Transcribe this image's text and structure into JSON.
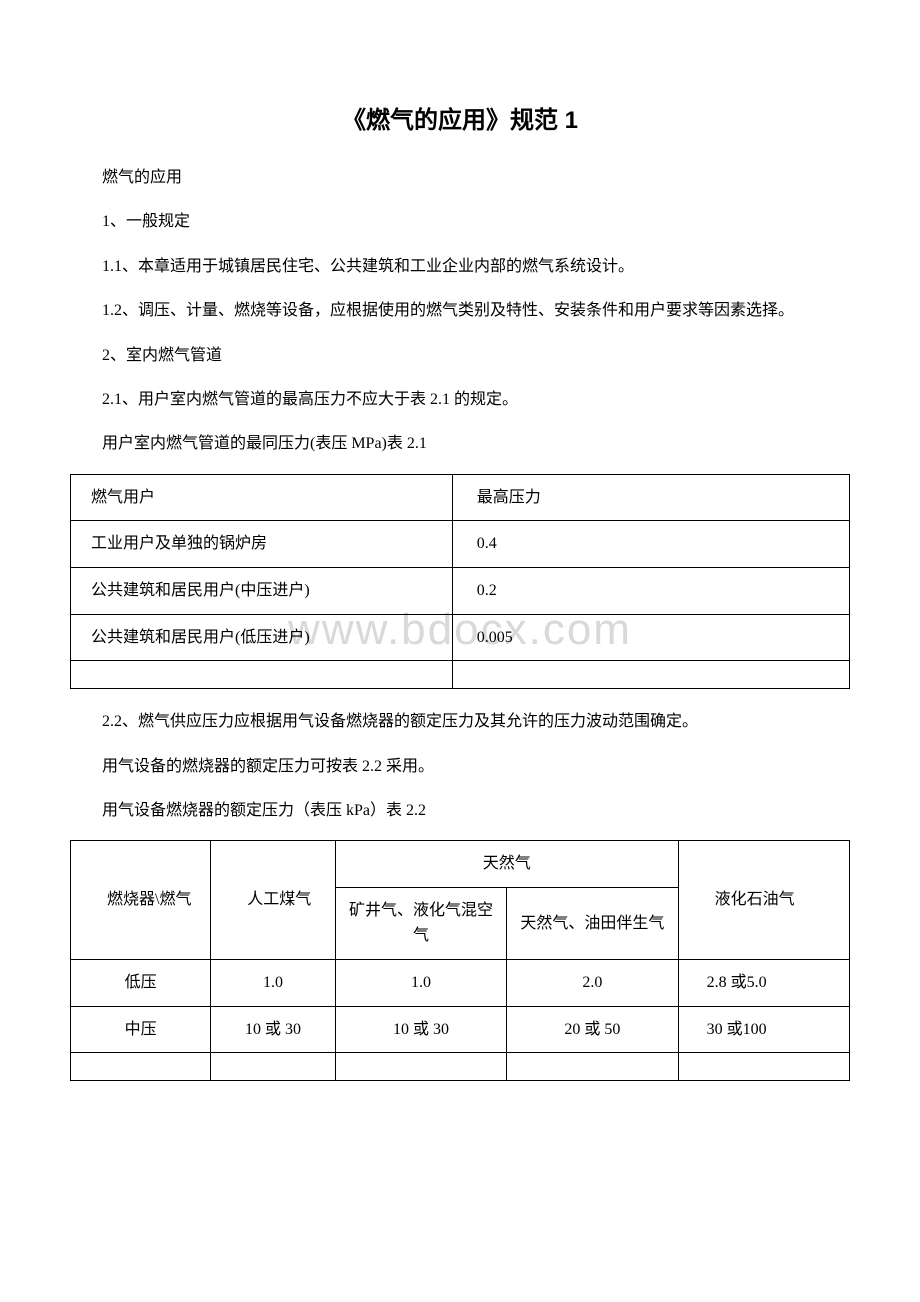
{
  "title": "《燃气的应用》规范 1",
  "watermark": "www.bdocx.com",
  "paras": {
    "p0": "燃气的应用",
    "p1": "1、一般规定",
    "p2": "1.1、本章适用于城镇居民住宅、公共建筑和工业企业内部的燃气系统设计。",
    "p3": "1.2、调压、计量、燃烧等设备，应根据使用的燃气类别及特性、安装条件和用户要求等因素选择。",
    "p4": "2、室内燃气管道",
    "p5": "2.1、用户室内燃气管道的最高压力不应大于表 2.1 的规定。",
    "p6": "用户室内燃气管道的最同压力(表压 MPa)表 2.1",
    "p7": "2.2、燃气供应压力应根据用气设备燃烧器的额定压力及其允许的压力波动范围确定。",
    "p8": "用气设备的燃烧器的额定压力可按表 2.2 采用。",
    "p9": "用气设备燃烧器的额定压力（表压 kPa）表 2.2"
  },
  "table1": {
    "header": {
      "c1": "燃气用户",
      "c2": "最高压力"
    },
    "rows": [
      {
        "c1": "工业用户及单独的锅炉房",
        "c2": "0.4"
      },
      {
        "c1": "公共建筑和居民用户(中压进户)",
        "c2": "0.2"
      },
      {
        "c1": "公共建筑和居民用户(低压进户)",
        "c2": "0.005"
      }
    ]
  },
  "table2": {
    "header": {
      "r1": {
        "c1": "燃烧器\\燃气",
        "c2": "人工煤气",
        "c3": "天然气",
        "c4": "液化石油气"
      },
      "r2": {
        "c3a": "矿井气、液化气混空气",
        "c3b": "天然气、油田伴生气"
      }
    },
    "rows": [
      {
        "c1": "低压",
        "c2": "1.0",
        "c3": "1.0",
        "c4": "2.0",
        "c5": "2.8 或5.0"
      },
      {
        "c1": "中压",
        "c2": "10 或 30",
        "c3": "10 或 30",
        "c4": "20 或 50",
        "c5": "30 或100"
      }
    ]
  }
}
